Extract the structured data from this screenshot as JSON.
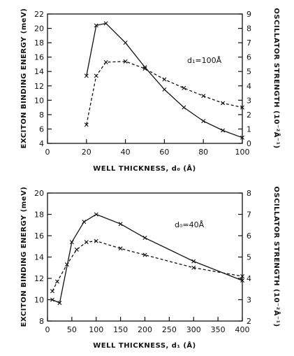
{
  "chart_data": [
    {
      "type": "line",
      "annotation": "d₁=100Å",
      "xlabel": "WELL THICKNESS, d₀ (Å)",
      "ylabel": "EXCITON BINDING ENERGY (meV)",
      "y2label": "OSCILLATOR STRENGTH (10⁻²Å⁻¹)",
      "xlim": [
        0,
        100
      ],
      "ylim": [
        4,
        22
      ],
      "y2lim": [
        0,
        9
      ],
      "xticks": [
        "0",
        "20",
        "40",
        "60",
        "80",
        "100"
      ],
      "yticks": [
        "4",
        "6",
        "8",
        "10",
        "12",
        "14",
        "16",
        "18",
        "20",
        "22"
      ],
      "y2ticks": [
        "0",
        "1",
        "2",
        "3",
        "4",
        "5",
        "6",
        "7",
        "8",
        "9"
      ],
      "series": [
        {
          "style": "solid",
          "axis": "left",
          "x": [
            20,
            25,
            30,
            40,
            50,
            60,
            70,
            80,
            90,
            100
          ],
          "y": [
            13.4,
            20.4,
            20.7,
            18.0,
            14.6,
            11.5,
            9.0,
            7.1,
            5.8,
            4.8
          ]
        },
        {
          "style": "dashed",
          "axis": "left",
          "x": [
            20,
            25,
            30,
            40,
            50,
            60,
            70,
            80,
            90,
            100
          ],
          "y": [
            6.6,
            13.4,
            15.3,
            15.4,
            14.4,
            12.9,
            11.7,
            10.6,
            9.6,
            9.0
          ]
        }
      ]
    },
    {
      "type": "line",
      "annotation": "d₀=40Å",
      "xlabel": "WELL THICKNESS, d₁ (Å)",
      "ylabel": "EXCITON BINDING ENERGY (meV)",
      "y2label": "OSCILLATOR STRENGTH (10⁻²Å⁻¹)",
      "xlim": [
        0,
        400
      ],
      "ylim": [
        8,
        20
      ],
      "y2lim": [
        2,
        8
      ],
      "xticks": [
        "0",
        "50",
        "100",
        "150",
        "200",
        "250",
        "300",
        "350",
        "400"
      ],
      "yticks": [
        "8",
        "10",
        "12",
        "14",
        "16",
        "18",
        "20"
      ],
      "y2ticks": [
        "2",
        "3",
        "4",
        "5",
        "6",
        "7",
        "8"
      ],
      "series": [
        {
          "style": "solid",
          "axis": "left",
          "x": [
            10,
            25,
            50,
            75,
            100,
            150,
            200,
            300,
            400
          ],
          "y": [
            10.0,
            9.7,
            15.4,
            17.3,
            18.0,
            17.1,
            15.8,
            13.6,
            11.8
          ]
        },
        {
          "style": "dashed",
          "axis": "left",
          "x": [
            10,
            20,
            40,
            60,
            80,
            100,
            150,
            200,
            300,
            400
          ],
          "y": [
            10.8,
            11.7,
            13.3,
            14.7,
            15.4,
            15.5,
            14.8,
            14.2,
            13.0,
            12.2
          ]
        }
      ]
    }
  ]
}
